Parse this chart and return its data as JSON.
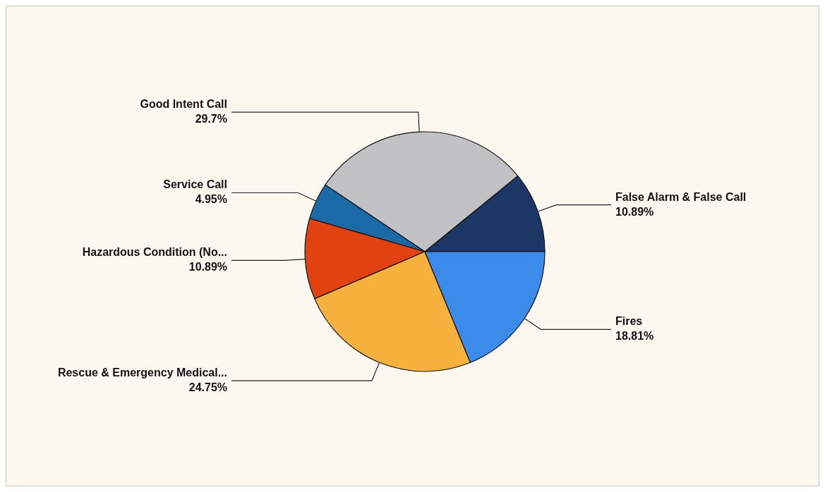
{
  "chart_data": {
    "type": "pie",
    "categories": [
      "False Alarm & False Call",
      "Good Intent Call",
      "Service Call",
      "Hazardous Condition (No...",
      "Rescue & Emergency Medical...",
      "Fires"
    ],
    "values": [
      10.89,
      29.7,
      4.95,
      10.89,
      24.75,
      18.81
    ],
    "value_labels": [
      "10.89%",
      "29.7%",
      "4.95%",
      "10.89%",
      "24.75%",
      "18.81%"
    ],
    "colors": [
      "#1c3766",
      "#c2c2c4",
      "#1a6aa6",
      "#e2420f",
      "#f7b23e",
      "#3b8bea"
    ]
  }
}
